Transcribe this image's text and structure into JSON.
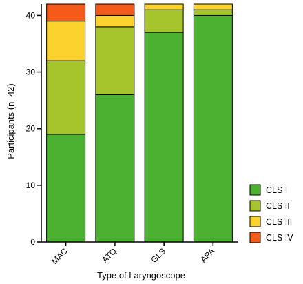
{
  "chart_data": {
    "type": "bar",
    "stacked": true,
    "categories": [
      "MAC",
      "ATQ",
      "GLS",
      "APA"
    ],
    "series": [
      {
        "name": "CLS I",
        "color": "#4cb030",
        "values": [
          19,
          26,
          37,
          40
        ]
      },
      {
        "name": "CLS II",
        "color": "#a6c42b",
        "values": [
          13,
          12,
          4,
          1
        ]
      },
      {
        "name": "CLS III",
        "color": "#fcd22f",
        "values": [
          7,
          2,
          1,
          1
        ]
      },
      {
        "name": "CLS IV",
        "color": "#f55a19",
        "values": [
          3,
          2,
          0,
          0
        ]
      }
    ],
    "xlabel": "Type of Laryngoscope",
    "ylabel": "Participants (n=42)",
    "ylim": [
      0,
      42
    ],
    "yticks": [
      0,
      10,
      20,
      30,
      40
    ],
    "annotations": [
      {
        "category": "GLS",
        "marks": [
          "*"
        ]
      },
      {
        "category": "APA",
        "marks": [
          "*",
          "#"
        ]
      }
    ],
    "legend_position": "right",
    "grid": false
  }
}
